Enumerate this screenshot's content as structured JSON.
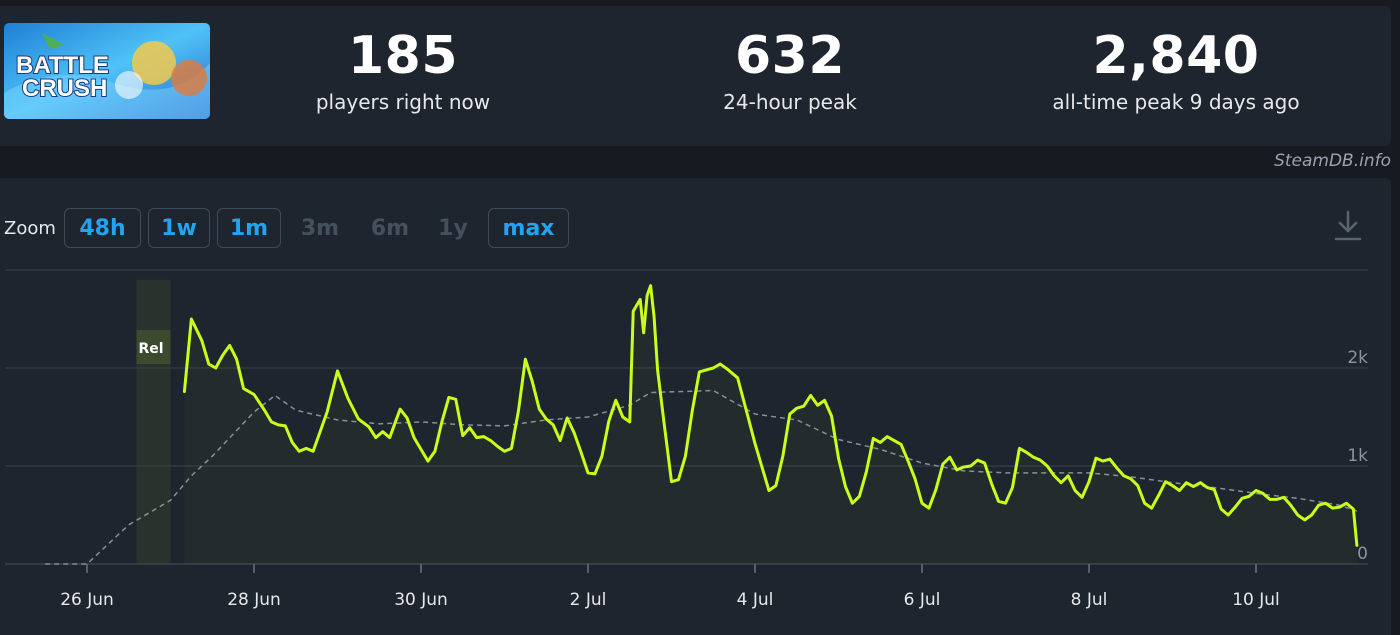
{
  "header": {
    "logo_text_line1": "BATTLE",
    "logo_text_line2": "CRUSH",
    "stats": [
      {
        "value": "185",
        "label": "players right now"
      },
      {
        "value": "632",
        "label": "24-hour peak"
      },
      {
        "value": "2,840",
        "label": "all-time peak 9 days ago"
      }
    ],
    "watermark": "SteamDB.info"
  },
  "zoom": {
    "label": "Zoom",
    "buttons": [
      {
        "label": "48h",
        "enabled": true
      },
      {
        "label": "1w",
        "enabled": true
      },
      {
        "label": "1m",
        "enabled": true
      },
      {
        "label": "3m",
        "enabled": false
      },
      {
        "label": "6m",
        "enabled": false
      },
      {
        "label": "1y",
        "enabled": false
      },
      {
        "label": "max",
        "enabled": true
      }
    ],
    "download_icon": "download-icon"
  },
  "chart_data": {
    "type": "line",
    "title": "",
    "xlabel": "",
    "ylabel": "",
    "x_axis": "date",
    "x_ticks": [
      "26 Jun",
      "28 Jun",
      "30 Jun",
      "2 Jul",
      "4 Jul",
      "6 Jul",
      "8 Jul",
      "10 Jul"
    ],
    "y_ticks": [
      "0",
      "1k",
      "2k"
    ],
    "ylim": [
      0,
      3000
    ],
    "grid": true,
    "annotation": {
      "label": "Rel",
      "date": "27 Jun"
    },
    "colors": {
      "players": "#c8ff1a",
      "average": "#8a8f96",
      "grid": "#3a424c"
    },
    "series": [
      {
        "style": "solid",
        "points": [
          [
            "27 Jun 04:00",
            1760
          ],
          [
            "27 Jun 06:00",
            2500
          ],
          [
            "27 Jun 09:00",
            2280
          ],
          [
            "27 Jun 11:00",
            2040
          ],
          [
            "27 Jun 13:00",
            2000
          ],
          [
            "27 Jun 15:00",
            2130
          ],
          [
            "27 Jun 17:00",
            2230
          ],
          [
            "27 Jun 19:00",
            2090
          ],
          [
            "27 Jun 21:00",
            1790
          ],
          [
            "28 Jun 00:00",
            1730
          ],
          [
            "28 Jun 03:00",
            1570
          ],
          [
            "28 Jun 05:00",
            1450
          ],
          [
            "28 Jun 07:00",
            1420
          ],
          [
            "28 Jun 09:00",
            1410
          ],
          [
            "28 Jun 11:00",
            1240
          ],
          [
            "28 Jun 13:00",
            1150
          ],
          [
            "28 Jun 15:00",
            1180
          ],
          [
            "28 Jun 17:00",
            1150
          ],
          [
            "28 Jun 19:00",
            1350
          ],
          [
            "28 Jun 21:00",
            1550
          ],
          [
            "29 Jun 00:00",
            1970
          ],
          [
            "29 Jun 03:00",
            1690
          ],
          [
            "29 Jun 06:00",
            1480
          ],
          [
            "29 Jun 09:00",
            1400
          ],
          [
            "29 Jun 11:00",
            1290
          ],
          [
            "29 Jun 13:00",
            1350
          ],
          [
            "29 Jun 15:00",
            1290
          ],
          [
            "29 Jun 18:00",
            1580
          ],
          [
            "29 Jun 20:00",
            1490
          ],
          [
            "29 Jun 22:00",
            1290
          ],
          [
            "30 Jun 00:00",
            1170
          ],
          [
            "30 Jun 02:00",
            1050
          ],
          [
            "30 Jun 04:00",
            1150
          ],
          [
            "30 Jun 06:00",
            1450
          ],
          [
            "30 Jun 08:00",
            1700
          ],
          [
            "30 Jun 10:00",
            1680
          ],
          [
            "30 Jun 12:00",
            1310
          ],
          [
            "30 Jun 14:00",
            1390
          ],
          [
            "30 Jun 16:00",
            1290
          ],
          [
            "30 Jun 18:00",
            1300
          ],
          [
            "30 Jun 20:00",
            1260
          ],
          [
            "30 Jun 22:00",
            1200
          ],
          [
            "1 Jul 00:00",
            1150
          ],
          [
            "1 Jul 02:00",
            1180
          ],
          [
            "1 Jul 04:00",
            1560
          ],
          [
            "1 Jul 06:00",
            2090
          ],
          [
            "1 Jul 08:00",
            1860
          ],
          [
            "1 Jul 10:00",
            1580
          ],
          [
            "1 Jul 12:00",
            1480
          ],
          [
            "1 Jul 14:00",
            1420
          ],
          [
            "1 Jul 16:00",
            1260
          ],
          [
            "1 Jul 18:00",
            1490
          ],
          [
            "1 Jul 20:00",
            1340
          ],
          [
            "1 Jul 22:00",
            1140
          ],
          [
            "2 Jul 00:00",
            930
          ],
          [
            "2 Jul 02:00",
            920
          ],
          [
            "2 Jul 04:00",
            1100
          ],
          [
            "2 Jul 06:00",
            1460
          ],
          [
            "2 Jul 08:00",
            1670
          ],
          [
            "2 Jul 10:00",
            1500
          ],
          [
            "2 Jul 12:00",
            1450
          ],
          [
            "2 Jul 13:00",
            2580
          ],
          [
            "2 Jul 15:00",
            2700
          ],
          [
            "2 Jul 16:00",
            2360
          ],
          [
            "2 Jul 17:00",
            2740
          ],
          [
            "2 Jul 18:00",
            2840
          ],
          [
            "2 Jul 19:00",
            2520
          ],
          [
            "2 Jul 20:00",
            1980
          ],
          [
            "2 Jul 22:00",
            1400
          ],
          [
            "3 Jul 00:00",
            840
          ],
          [
            "3 Jul 02:00",
            860
          ],
          [
            "3 Jul 04:00",
            1100
          ],
          [
            "3 Jul 06:00",
            1570
          ],
          [
            "3 Jul 08:00",
            1960
          ],
          [
            "3 Jul 10:00",
            1980
          ],
          [
            "3 Jul 12:00",
            2000
          ],
          [
            "3 Jul 14:00",
            2040
          ],
          [
            "3 Jul 16:00",
            1990
          ],
          [
            "3 Jul 19:00",
            1900
          ],
          [
            "3 Jul 22:00",
            1500
          ],
          [
            "4 Jul 00:00",
            1230
          ],
          [
            "4 Jul 02:00",
            990
          ],
          [
            "4 Jul 04:00",
            750
          ],
          [
            "4 Jul 06:00",
            800
          ],
          [
            "4 Jul 08:00",
            1100
          ],
          [
            "4 Jul 10:00",
            1530
          ],
          [
            "4 Jul 12:00",
            1590
          ],
          [
            "4 Jul 14:00",
            1610
          ],
          [
            "4 Jul 16:00",
            1720
          ],
          [
            "4 Jul 18:00",
            1620
          ],
          [
            "4 Jul 20:00",
            1670
          ],
          [
            "4 Jul 22:00",
            1510
          ],
          [
            "5 Jul 00:00",
            1080
          ],
          [
            "5 Jul 02:00",
            790
          ],
          [
            "5 Jul 04:00",
            620
          ],
          [
            "5 Jul 06:00",
            690
          ],
          [
            "5 Jul 08:00",
            940
          ],
          [
            "5 Jul 10:00",
            1280
          ],
          [
            "5 Jul 12:00",
            1240
          ],
          [
            "5 Jul 14:00",
            1300
          ],
          [
            "5 Jul 16:00",
            1260
          ],
          [
            "5 Jul 18:00",
            1220
          ],
          [
            "5 Jul 20:00",
            1050
          ],
          [
            "5 Jul 22:00",
            870
          ],
          [
            "6 Jul 00:00",
            620
          ],
          [
            "6 Jul 02:00",
            570
          ],
          [
            "6 Jul 04:00",
            760
          ],
          [
            "6 Jul 06:00",
            1020
          ],
          [
            "6 Jul 08:00",
            1090
          ],
          [
            "6 Jul 10:00",
            960
          ],
          [
            "6 Jul 12:00",
            990
          ],
          [
            "6 Jul 14:00",
            1000
          ],
          [
            "6 Jul 16:00",
            1060
          ],
          [
            "6 Jul 18:00",
            1030
          ],
          [
            "6 Jul 20:00",
            820
          ],
          [
            "6 Jul 22:00",
            640
          ],
          [
            "7 Jul 00:00",
            620
          ],
          [
            "7 Jul 02:00",
            780
          ],
          [
            "7 Jul 04:00",
            1180
          ],
          [
            "7 Jul 06:00",
            1140
          ],
          [
            "7 Jul 08:00",
            1090
          ],
          [
            "7 Jul 10:00",
            1060
          ],
          [
            "7 Jul 12:00",
            1000
          ],
          [
            "7 Jul 14:00",
            900
          ],
          [
            "7 Jul 16:00",
            830
          ],
          [
            "7 Jul 18:00",
            900
          ],
          [
            "7 Jul 20:00",
            750
          ],
          [
            "7 Jul 22:00",
            680
          ],
          [
            "8 Jul 00:00",
            840
          ],
          [
            "8 Jul 02:00",
            1080
          ],
          [
            "8 Jul 04:00",
            1050
          ],
          [
            "8 Jul 06:00",
            1070
          ],
          [
            "8 Jul 08:00",
            980
          ],
          [
            "8 Jul 10:00",
            900
          ],
          [
            "8 Jul 12:00",
            870
          ],
          [
            "8 Jul 14:00",
            800
          ],
          [
            "8 Jul 16:00",
            620
          ],
          [
            "8 Jul 18:00",
            570
          ],
          [
            "8 Jul 20:00",
            700
          ],
          [
            "8 Jul 22:00",
            840
          ],
          [
            "9 Jul 00:00",
            800
          ],
          [
            "9 Jul 02:00",
            750
          ],
          [
            "9 Jul 04:00",
            830
          ],
          [
            "9 Jul 06:00",
            790
          ],
          [
            "9 Jul 08:00",
            830
          ],
          [
            "9 Jul 10:00",
            780
          ],
          [
            "9 Jul 12:00",
            760
          ],
          [
            "9 Jul 14:00",
            560
          ],
          [
            "9 Jul 16:00",
            500
          ],
          [
            "9 Jul 18:00",
            580
          ],
          [
            "9 Jul 20:00",
            670
          ],
          [
            "9 Jul 22:00",
            690
          ],
          [
            "10 Jul 00:00",
            750
          ],
          [
            "10 Jul 02:00",
            720
          ],
          [
            "10 Jul 04:00",
            660
          ],
          [
            "10 Jul 06:00",
            660
          ],
          [
            "10 Jul 08:00",
            680
          ],
          [
            "10 Jul 10:00",
            600
          ],
          [
            "10 Jul 12:00",
            500
          ],
          [
            "10 Jul 14:00",
            450
          ],
          [
            "10 Jul 16:00",
            500
          ],
          [
            "10 Jul 18:00",
            600
          ],
          [
            "10 Jul 20:00",
            620
          ],
          [
            "10 Jul 22:00",
            570
          ],
          [
            "11 Jul 00:00",
            580
          ],
          [
            "11 Jul 02:00",
            620
          ],
          [
            "11 Jul 04:00",
            560
          ],
          [
            "11 Jul 05:00",
            190
          ]
        ]
      },
      {
        "style": "dashed",
        "points": [
          [
            "25 Jun 12:00",
            0
          ],
          [
            "26 Jun 00:00",
            0
          ],
          [
            "26 Jun 12:00",
            400
          ],
          [
            "27 Jun 00:00",
            650
          ],
          [
            "27 Jun 06:00",
            900
          ],
          [
            "27 Jun 12:00",
            1100
          ],
          [
            "28 Jun 00:00",
            1550
          ],
          [
            "28 Jun 06:00",
            1720
          ],
          [
            "28 Jun 12:00",
            1570
          ],
          [
            "29 Jun 00:00",
            1470
          ],
          [
            "29 Jun 12:00",
            1430
          ],
          [
            "30 Jun 00:00",
            1450
          ],
          [
            "30 Jun 12:00",
            1420
          ],
          [
            "1 Jul 00:00",
            1410
          ],
          [
            "1 Jul 12:00",
            1470
          ],
          [
            "2 Jul 00:00",
            1500
          ],
          [
            "2 Jul 12:00",
            1620
          ],
          [
            "2 Jul 18:00",
            1750
          ],
          [
            "3 Jul 12:00",
            1770
          ],
          [
            "4 Jul 00:00",
            1530
          ],
          [
            "4 Jul 12:00",
            1470
          ],
          [
            "5 Jul 00:00",
            1270
          ],
          [
            "5 Jul 12:00",
            1170
          ],
          [
            "6 Jul 00:00",
            1030
          ],
          [
            "6 Jul 12:00",
            950
          ],
          [
            "7 Jul 00:00",
            930
          ],
          [
            "7 Jul 12:00",
            930
          ],
          [
            "8 Jul 00:00",
            930
          ],
          [
            "8 Jul 12:00",
            890
          ],
          [
            "9 Jul 00:00",
            830
          ],
          [
            "9 Jul 12:00",
            780
          ],
          [
            "10 Jul 00:00",
            720
          ],
          [
            "10 Jul 12:00",
            670
          ],
          [
            "11 Jul 00:00",
            600
          ],
          [
            "11 Jul 05:00",
            540
          ]
        ]
      }
    ]
  }
}
